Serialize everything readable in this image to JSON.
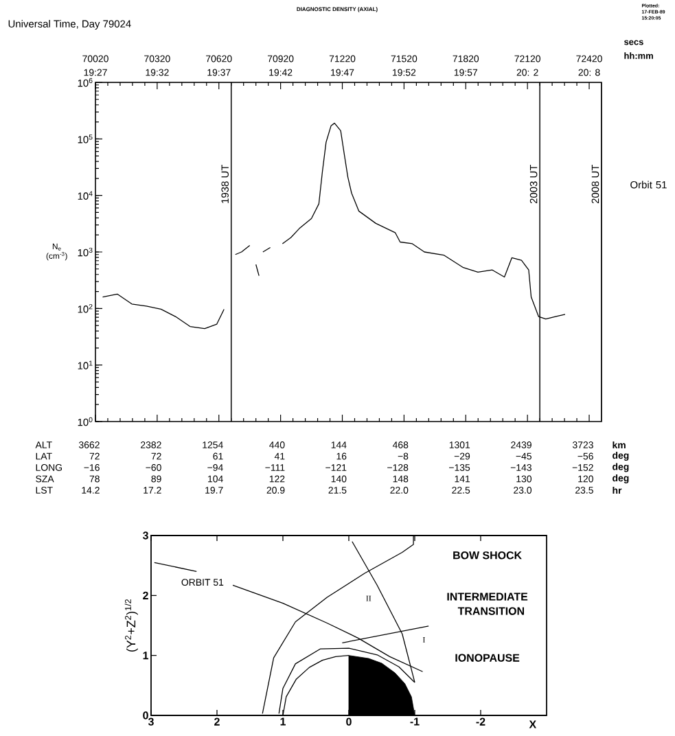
{
  "chart_data": [
    {
      "type": "line",
      "title": "DIAGNOSTIC DENSITY (AXIAL)",
      "xlabel": "Universal Time, Day 79024",
      "ylabel": "N$_{e}$ (cm$^{-3}$)",
      "color": "#000000",
      "x": [
        70055,
        70126,
        70197,
        70268,
        70339,
        70409,
        70480,
        70551,
        70610,
        70645,
        70660,
        70700,
        70730,
        70770,
        70785,
        70800,
        70815,
        70825,
        70834,
        70870,
        70900,
        70929,
        70970,
        71011,
        71070,
        71106,
        71123,
        71141,
        71165,
        71182,
        71212,
        71230,
        71247,
        71265,
        71300,
        71383,
        71477,
        71501,
        71560,
        71619,
        71713,
        71808,
        71879,
        71949,
        72008,
        72044,
        72091,
        72126,
        72138,
        72174,
        72209,
        72256,
        72303
      ],
      "values": [
        160,
        180,
        120,
        110,
        97,
        72,
        48,
        44,
        53,
        97,
        null,
        900,
        1000,
        1300,
        null,
        600,
        380,
        null,
        1000,
        1200,
        null,
        1400,
        1800,
        2600,
        3900,
        7100,
        26000,
        87000,
        170000,
        190000,
        140000,
        52000,
        21000,
        11000,
        5300,
        3200,
        2200,
        1500,
        1400,
        1000,
        880,
        530,
        440,
        480,
        360,
        790,
        710,
        480,
        160,
        72,
        65,
        72,
        79
      ],
      "xlim": [
        70020,
        72480
      ],
      "xticks": [
        {
          "value": 70020,
          "label": "70020"
        },
        {
          "value": 70320,
          "label": "70320"
        },
        {
          "value": 70620,
          "label": "70620"
        },
        {
          "value": 70920,
          "label": "70920"
        },
        {
          "value": 71220,
          "label": "71220"
        },
        {
          "value": 71520,
          "label": "71520"
        },
        {
          "value": 71820,
          "label": "71820"
        },
        {
          "value": 72120,
          "label": "72120"
        },
        {
          "value": 72420,
          "label": "72420"
        }
      ],
      "x2lim": [
        70020,
        72480
      ],
      "x2ticks": [
        {
          "value": 70020,
          "label": "19:27"
        },
        {
          "value": 70320,
          "label": "19:32"
        },
        {
          "value": 70620,
          "label": "19:37"
        },
        {
          "value": 70920,
          "label": "19:42"
        },
        {
          "value": 71220,
          "label": "19:47"
        },
        {
          "value": 71520,
          "label": "19:52"
        },
        {
          "value": 71820,
          "label": "19:57"
        },
        {
          "value": 72120,
          "label": "20: 2"
        },
        {
          "value": 72420,
          "label": "20: 8"
        }
      ],
      "ylim": [
        1,
        1000000
      ],
      "yticks": [
        {
          "value": 1,
          "label": "10$^{0}$"
        },
        {
          "value": 10,
          "label": "10$^{1}$"
        },
        {
          "value": 100,
          "label": "10$^{2}$"
        },
        {
          "value": 1000,
          "label": "10$^{3}$"
        },
        {
          "value": 10000,
          "label": "10$^{4}$"
        },
        {
          "value": 100000,
          "label": "10$^{5}$"
        },
        {
          "value": 1000000,
          "label": "10$^{6}$"
        }
      ],
      "log": "y",
      "ref_lines": [
        {
          "axis": "x",
          "value": 70680,
          "label": "1938 UT"
        },
        {
          "axis": "x",
          "value": 72180,
          "label": "2003 UT"
        },
        {
          "axis": "x",
          "value": 72480,
          "label": "2008 UT"
        }
      ],
      "annotations": [
        "Plotted: 17-FEB-89 15:20:05",
        "Orbit 51",
        "secs",
        "hh:mm",
        "ALT",
        "3662",
        "2382",
        "1254",
        "440",
        "144",
        "468",
        "1301",
        "2439",
        "3723",
        "km",
        "LAT",
        "72",
        "72",
        "61",
        "41",
        "16",
        "−8",
        "−29",
        "−45",
        "−56",
        "deg",
        "LONG",
        "−16",
        "−60",
        "−94",
        "−111",
        "−121",
        "−128",
        "−135",
        "−143",
        "−152",
        "deg",
        "SZA",
        "78",
        "89",
        "104",
        "122",
        "140",
        "148",
        "141",
        "130",
        "120",
        "deg",
        "LST",
        "14.2",
        "17.2",
        "19.7",
        "20.9",
        "21.5",
        "22.0",
        "22.5",
        "23.0",
        "23.5",
        "hr"
      ]
    },
    {
      "type": "line",
      "xlabel": "X",
      "ylabel": "(Y$^{2}$+Z$^{2}$)$^{1/2}$",
      "xlim": [
        3,
        -3
      ],
      "ylim": [
        0,
        3
      ],
      "xticks": [
        3,
        2,
        1,
        0,
        -1,
        -2
      ],
      "yticks": [
        0,
        1,
        2,
        3
      ],
      "series": [
        {
          "type": "area",
          "color": "#000000",
          "x": [
            0,
            -0.3,
            -0.5,
            -0.7,
            -0.85,
            -0.95,
            -1.0
          ],
          "values": [
            1.0,
            0.95,
            0.87,
            0.71,
            0.53,
            0.31,
            0
          ]
        },
        {
          "color": "#000000",
          "x": [
            1.0,
            0.95,
            0.8,
            0.6,
            0.4,
            0.2,
            0
          ],
          "values": [
            0,
            0.31,
            0.6,
            0.8,
            0.92,
            0.98,
            1.0
          ]
        },
        {
          "color": "#000000",
          "x": [
            1.06,
            1.0,
            0.81,
            0.43,
            0,
            -0.43,
            -0.76,
            -1.0
          ],
          "values": [
            0.03,
            0.45,
            0.86,
            1.11,
            1.12,
            1.01,
            0.81,
            0.55
          ]
        },
        {
          "color": "#000000",
          "x": [
            1.31,
            1.14,
            0.81,
            0.33,
            -0.24,
            -0.81,
            -0.98,
            -0.98
          ],
          "values": [
            0.03,
            0.96,
            1.56,
            1.97,
            2.37,
            2.72,
            2.85,
            3.0
          ]
        },
        {
          "color": "#000000",
          "x": [
            2.95,
            2.31,
            2.0,
            1.76,
            1.0,
            0.33,
            -0.14,
            -0.62,
            -1.12
          ],
          "values": [
            2.55,
            2.4,
            null,
            2.17,
            1.87,
            1.54,
            1.29,
            0.98,
            0.73
          ]
        },
        {
          "color": "#000000",
          "x": [
            -0.05,
            -0.43,
            -0.81,
            -1.0
          ],
          "values": [
            2.9,
            2.17,
            1.36,
            0.55
          ]
        },
        {
          "color": "#000000",
          "x": [
            0.1,
            -1.21
          ],
          "values": [
            1.21,
            1.49
          ]
        }
      ],
      "annotations": [
        "BOW SHOCK",
        "INTERMEDIATE",
        "TRANSITION",
        "IONOPAUSE",
        "ORBIT 51",
        "II",
        "I"
      ]
    }
  ]
}
